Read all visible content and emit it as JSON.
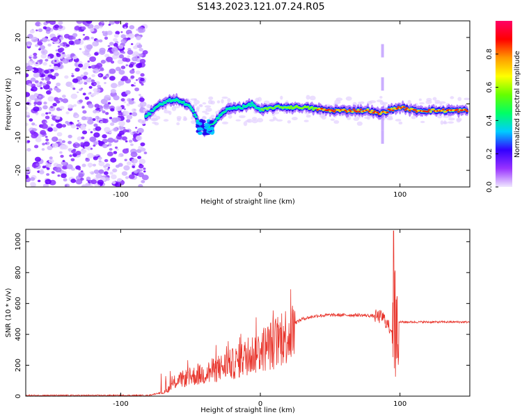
{
  "title": "S143.2023.121.07.24.R05",
  "chart_data": [
    {
      "type": "heatmap",
      "xlabel": "Height of straight line (km)",
      "ylabel": "Frequency (Hz)",
      "xlim": [
        -168,
        150
      ],
      "ylim": [
        -25,
        25
      ],
      "xticks": [
        -100,
        0,
        100
      ],
      "xtick_labels": [
        "-100",
        "0",
        "100"
      ],
      "yticks": [
        20,
        10,
        0,
        -10,
        -20
      ],
      "ytick_labels": [
        "20",
        "10",
        "0",
        "-10",
        "-20"
      ],
      "colorbar": {
        "label": "Normalized spectral amplitude",
        "range": [
          0,
          1
        ],
        "ticks": [
          0.0,
          0.2,
          0.4,
          0.6,
          0.8
        ],
        "tick_labels": [
          "0.0",
          "0.2",
          "0.4",
          "0.6",
          "0.8"
        ],
        "colors": [
          "#f0e8ff",
          "#9933ff",
          "#3300ff",
          "#00ccff",
          "#00ff66",
          "#66ff00",
          "#ffff00",
          "#ff9900",
          "#ff0000",
          "#ff0066"
        ]
      },
      "ridge": {
        "x": [
          -82,
          -75,
          -65,
          -58,
          -50,
          -45,
          -40,
          -36,
          -32,
          -25,
          -18,
          -12,
          -6,
          0,
          10,
          30,
          50,
          70,
          78,
          85,
          92,
          100,
          110,
          130,
          148
        ],
        "frequency": [
          -4,
          -1,
          1,
          1,
          -1,
          -5,
          -8,
          -7,
          -5,
          -2,
          -1,
          -1,
          0,
          -2,
          -1,
          -1,
          -2,
          -2,
          -2,
          -3,
          -2,
          -1,
          -2,
          -2,
          -2
        ]
      }
    },
    {
      "type": "line",
      "xlabel": "Height of straight line (km)",
      "ylabel": "SNR (10 * v/v)",
      "xlim": [
        -168,
        150
      ],
      "ylim": [
        0,
        1080
      ],
      "xticks": [
        -100,
        0,
        100
      ],
      "xtick_labels": [
        "-100",
        "0",
        "100"
      ],
      "yticks": [
        0,
        200,
        400,
        600,
        800,
        1000
      ],
      "ytick_labels": [
        "0",
        "200",
        "400",
        "600",
        "800",
        "1000"
      ],
      "color": "#e8332a",
      "envelope": {
        "x": [
          -168,
          -80,
          -68,
          -60,
          -50,
          -40,
          -30,
          -20,
          -10,
          0,
          10,
          20,
          30,
          40,
          50,
          60,
          70,
          80,
          88,
          94,
          96,
          98,
          100,
          110,
          130,
          150
        ],
        "y": [
          5,
          5,
          30,
          110,
          140,
          160,
          200,
          230,
          280,
          330,
          380,
          450,
          500,
          520,
          525,
          525,
          525,
          520,
          510,
          420,
          480,
          470,
          480,
          480,
          480,
          480
        ]
      }
    }
  ]
}
